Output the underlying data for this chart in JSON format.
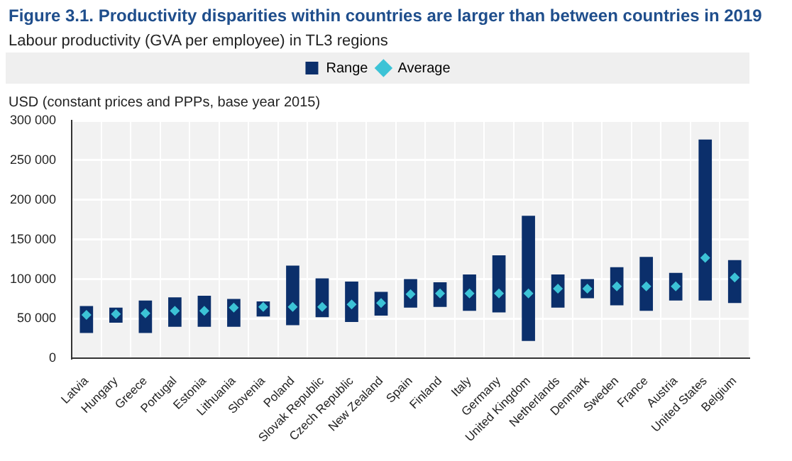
{
  "chart_data": {
    "type": "bar",
    "title": "Figure 3.1. Productivity disparities within countries are larger than between countries in 2019",
    "subtitle": "Labour productivity (GVA per employee) in TL3 regions",
    "ylabel": "USD (constant prices and PPPs, base year 2015)",
    "categories": [
      "Latvia",
      "Hungary",
      "Greece",
      "Portugal",
      "Estonia",
      "Lithuania",
      "Slovenia",
      "Poland",
      "Slovak Republic",
      "Czech Republic",
      "New Zealand",
      "Spain",
      "Finland",
      "Italy",
      "Germany",
      "United Kingdom",
      "Netherlands",
      "Denmark",
      "Sweden",
      "France",
      "Austria",
      "United States",
      "Belgium"
    ],
    "series": [
      {
        "name": "Range",
        "type": "bar",
        "color": "#0b2f6b",
        "base": [
          32000,
          45000,
          32000,
          40000,
          40000,
          40000,
          53000,
          42000,
          52000,
          46000,
          54000,
          64000,
          65000,
          60000,
          58000,
          22000,
          64000,
          76000,
          67000,
          60000,
          73000,
          73000,
          70000
        ],
        "values": [
          34000,
          19000,
          41000,
          37000,
          39000,
          35000,
          19000,
          75000,
          49000,
          51000,
          30000,
          36000,
          31000,
          46000,
          72000,
          158000,
          42000,
          24000,
          48000,
          68000,
          35000,
          203000,
          54000
        ]
      },
      {
        "name": "Average",
        "type": "scatter",
        "color": "#3cc3d6",
        "marker": "diamond",
        "x": [
          "Latvia",
          "Hungary",
          "Greece",
          "Portugal",
          "Estonia",
          "Lithuania",
          "Slovenia",
          "Poland",
          "Slovak Republic",
          "Czech Republic",
          "New Zealand",
          "Spain",
          "Finland",
          "Italy",
          "Germany",
          "United Kingdom",
          "Netherlands",
          "Denmark",
          "Sweden",
          "France",
          "Austria",
          "United States",
          "Belgium"
        ],
        "values": [
          55000,
          56000,
          57000,
          60000,
          60000,
          64000,
          65000,
          65000,
          65000,
          68000,
          70000,
          81000,
          82000,
          82000,
          82000,
          82000,
          88000,
          88000,
          91000,
          91000,
          91000,
          127000,
          102000
        ]
      }
    ],
    "ylim": [
      0,
      300000
    ],
    "yticks": [
      {
        "value": 0,
        "label": "0"
      },
      {
        "value": 50000,
        "label": "50 000"
      },
      {
        "value": 100000,
        "label": "100 000"
      },
      {
        "value": 150000,
        "label": "150 000"
      },
      {
        "value": 200000,
        "label": "200 000"
      },
      {
        "value": 250000,
        "label": "250 000"
      },
      {
        "value": 300000,
        "label": "300 000"
      }
    ],
    "grid": true,
    "legend": "top"
  }
}
